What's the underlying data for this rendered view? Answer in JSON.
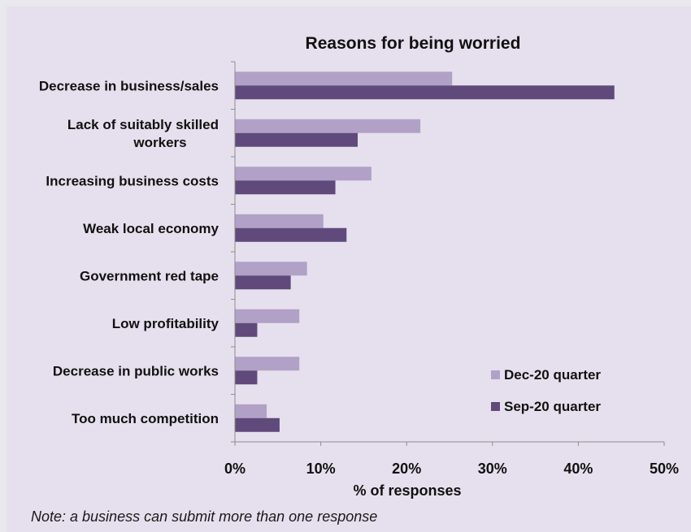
{
  "chart_data": {
    "type": "bar",
    "orientation": "horizontal",
    "title": "Reasons for being worried",
    "xlabel": "% of responses",
    "ylabel": "",
    "xlim": [
      0,
      50
    ],
    "ticks": [
      "0%",
      "10%",
      "20%",
      "30%",
      "40%",
      "50%"
    ],
    "tick_values": [
      0,
      10,
      20,
      30,
      40,
      50
    ],
    "categories": [
      [
        "Decrease in business/sales"
      ],
      [
        "Lack of suitably skilled",
        "workers"
      ],
      [
        "Increasing business costs"
      ],
      [
        "Weak local economy"
      ],
      [
        "Government red tape"
      ],
      [
        "Low profitability"
      ],
      [
        "Decrease in public works"
      ],
      [
        "Too much competition"
      ]
    ],
    "series": [
      {
        "name": "Dec-20 quarter",
        "color": "#b2a1c7",
        "values": [
          25.3,
          21.6,
          15.9,
          10.3,
          8.4,
          7.5,
          7.5,
          3.7
        ]
      },
      {
        "name": "Sep-20 quarter",
        "color": "#604a7b",
        "values": [
          44.2,
          14.3,
          11.7,
          13.0,
          6.5,
          2.6,
          2.6,
          5.2
        ]
      }
    ],
    "legend_position": "bottom-right",
    "grid": false
  },
  "note": "Note: a business can submit more than one response"
}
